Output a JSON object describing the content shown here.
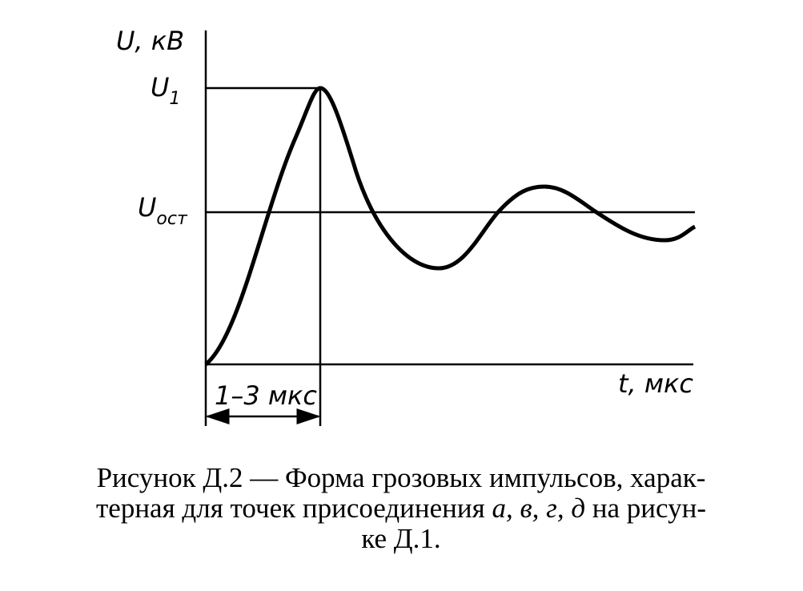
{
  "axes": {
    "y_label": "U, кВ",
    "x_label": "t, мкс"
  },
  "levels": {
    "peak": {
      "symbol": "U",
      "subscript": "1"
    },
    "residual": {
      "symbol": "U",
      "subscript": "ост"
    }
  },
  "interval": "1–3 мкс",
  "caption": {
    "line1": "Рисунок Д.2 — Форма грозовых импульсов, харак-",
    "line2": {
      "before": "терная для точек присоединения ",
      "italic": "а, в, г, д",
      "after": " на рисун-"
    },
    "line3": "ке Д.1."
  }
}
